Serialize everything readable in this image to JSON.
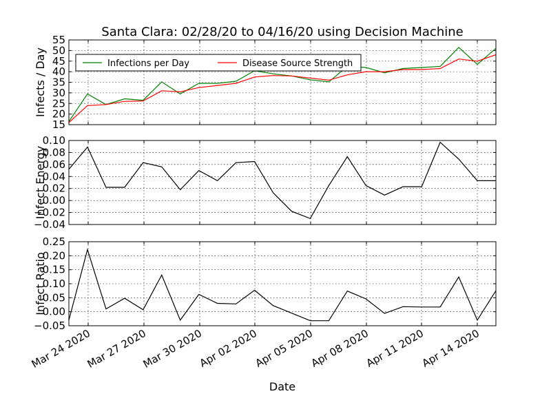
{
  "title": "Santa Clara: 02/28/20 to 04/16/20 using Decision Machine",
  "xlabel": "Date",
  "x_tick_labels": [
    "Mar 24 2020",
    "Mar 27 2020",
    "Mar 30 2020",
    "Apr 02 2020",
    "Apr 05 2020",
    "Apr 08 2020",
    "Apr 11 2020",
    "Apr 14 2020"
  ],
  "colors": {
    "infections": "#008000",
    "source": "#ff0000",
    "energy": "#000000",
    "ratio": "#000000"
  },
  "chart_data": [
    {
      "type": "line",
      "ylabel": "Infects / Day",
      "ylim": [
        15,
        55
      ],
      "yticks": [
        "15",
        "20",
        "25",
        "30",
        "35",
        "40",
        "45",
        "50",
        "55"
      ],
      "legend_position": "upper-left",
      "x_day_range": [
        0,
        23
      ],
      "series": [
        {
          "name": "Infections per Day",
          "color": "#008000",
          "values": [
            16.5,
            29.5,
            24.5,
            27.2,
            26.5,
            35.2,
            29.5,
            34.5,
            34.5,
            35.5,
            40.5,
            39.0,
            38.0,
            36.2,
            35.2,
            42.5,
            42.0,
            39.5,
            41.5,
            42.0,
            42.5,
            51.5,
            43.5,
            51.0
          ]
        },
        {
          "name": "Disease Source Strength",
          "color": "#ff0000",
          "values": [
            16.0,
            24.0,
            24.5,
            26.0,
            26.2,
            31.0,
            30.5,
            32.5,
            33.5,
            34.5,
            37.5,
            38.2,
            38.0,
            37.0,
            36.0,
            38.5,
            40.0,
            40.0,
            41.0,
            41.0,
            41.5,
            46.0,
            45.0,
            48.0
          ]
        }
      ]
    },
    {
      "type": "line",
      "ylabel": "Infect Energy",
      "ylim": [
        -0.04,
        0.1
      ],
      "yticks": [
        "−0.04",
        "−0.02",
        "0.00",
        "0.02",
        "0.04",
        "0.06",
        "0.08",
        "0.10"
      ],
      "x_day_range": [
        0,
        23
      ],
      "series": [
        {
          "name": "Infect Energy",
          "color": "#000000",
          "values": [
            0.052,
            0.089,
            0.022,
            0.022,
            0.063,
            0.056,
            0.018,
            0.05,
            0.033,
            0.063,
            0.065,
            0.013,
            -0.018,
            -0.03,
            0.025,
            0.073,
            0.025,
            0.009,
            0.023,
            0.023,
            0.097,
            0.069,
            0.033,
            0.033
          ]
        }
      ]
    },
    {
      "type": "line",
      "ylabel": "Infect Ratio",
      "ylim": [
        -0.05,
        0.25
      ],
      "yticks": [
        "−0.05",
        "0.00",
        "0.05",
        "0.10",
        "0.15",
        "0.20",
        "0.25"
      ],
      "x_day_range": [
        0,
        23
      ],
      "series": [
        {
          "name": "Infect Ratio",
          "color": "#000000",
          "values": [
            -0.03,
            0.222,
            0.01,
            0.048,
            0.007,
            0.131,
            -0.03,
            0.062,
            0.03,
            0.028,
            0.077,
            0.022,
            -0.005,
            -0.032,
            -0.032,
            0.074,
            0.046,
            -0.006,
            0.018,
            0.017,
            0.017,
            0.124,
            -0.03,
            0.075
          ]
        }
      ]
    }
  ]
}
